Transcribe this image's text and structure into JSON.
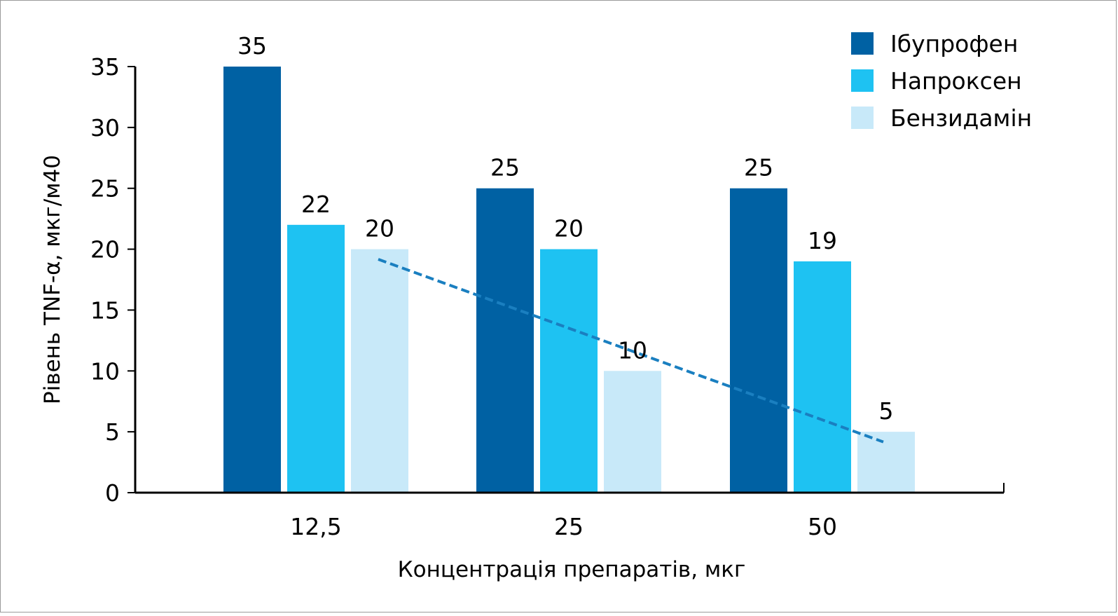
{
  "chart_data": {
    "type": "bar",
    "xlabel": "Концентрація препаратів, мкг",
    "ylabel": "Рівень TNF-α, мкг/м40",
    "categories": [
      "12,5",
      "25",
      "50"
    ],
    "series": [
      {
        "name": "Ібупрофен",
        "values": [
          35,
          25,
          25
        ],
        "color": "#0061a3"
      },
      {
        "name": "Напроксен",
        "values": [
          22,
          20,
          19
        ],
        "color": "#1ec2f2"
      },
      {
        "name": "Бензидамін",
        "values": [
          20,
          10,
          5
        ],
        "color": "#c8e9f9"
      }
    ],
    "ylim": [
      0,
      35
    ],
    "yticks": [
      0,
      5,
      10,
      15,
      20,
      25,
      30,
      35
    ],
    "trendline": {
      "series": "Бензидамін",
      "style": "dashed",
      "color": "#1a7fc0"
    },
    "legend_position": "top-right",
    "grid": false
  }
}
